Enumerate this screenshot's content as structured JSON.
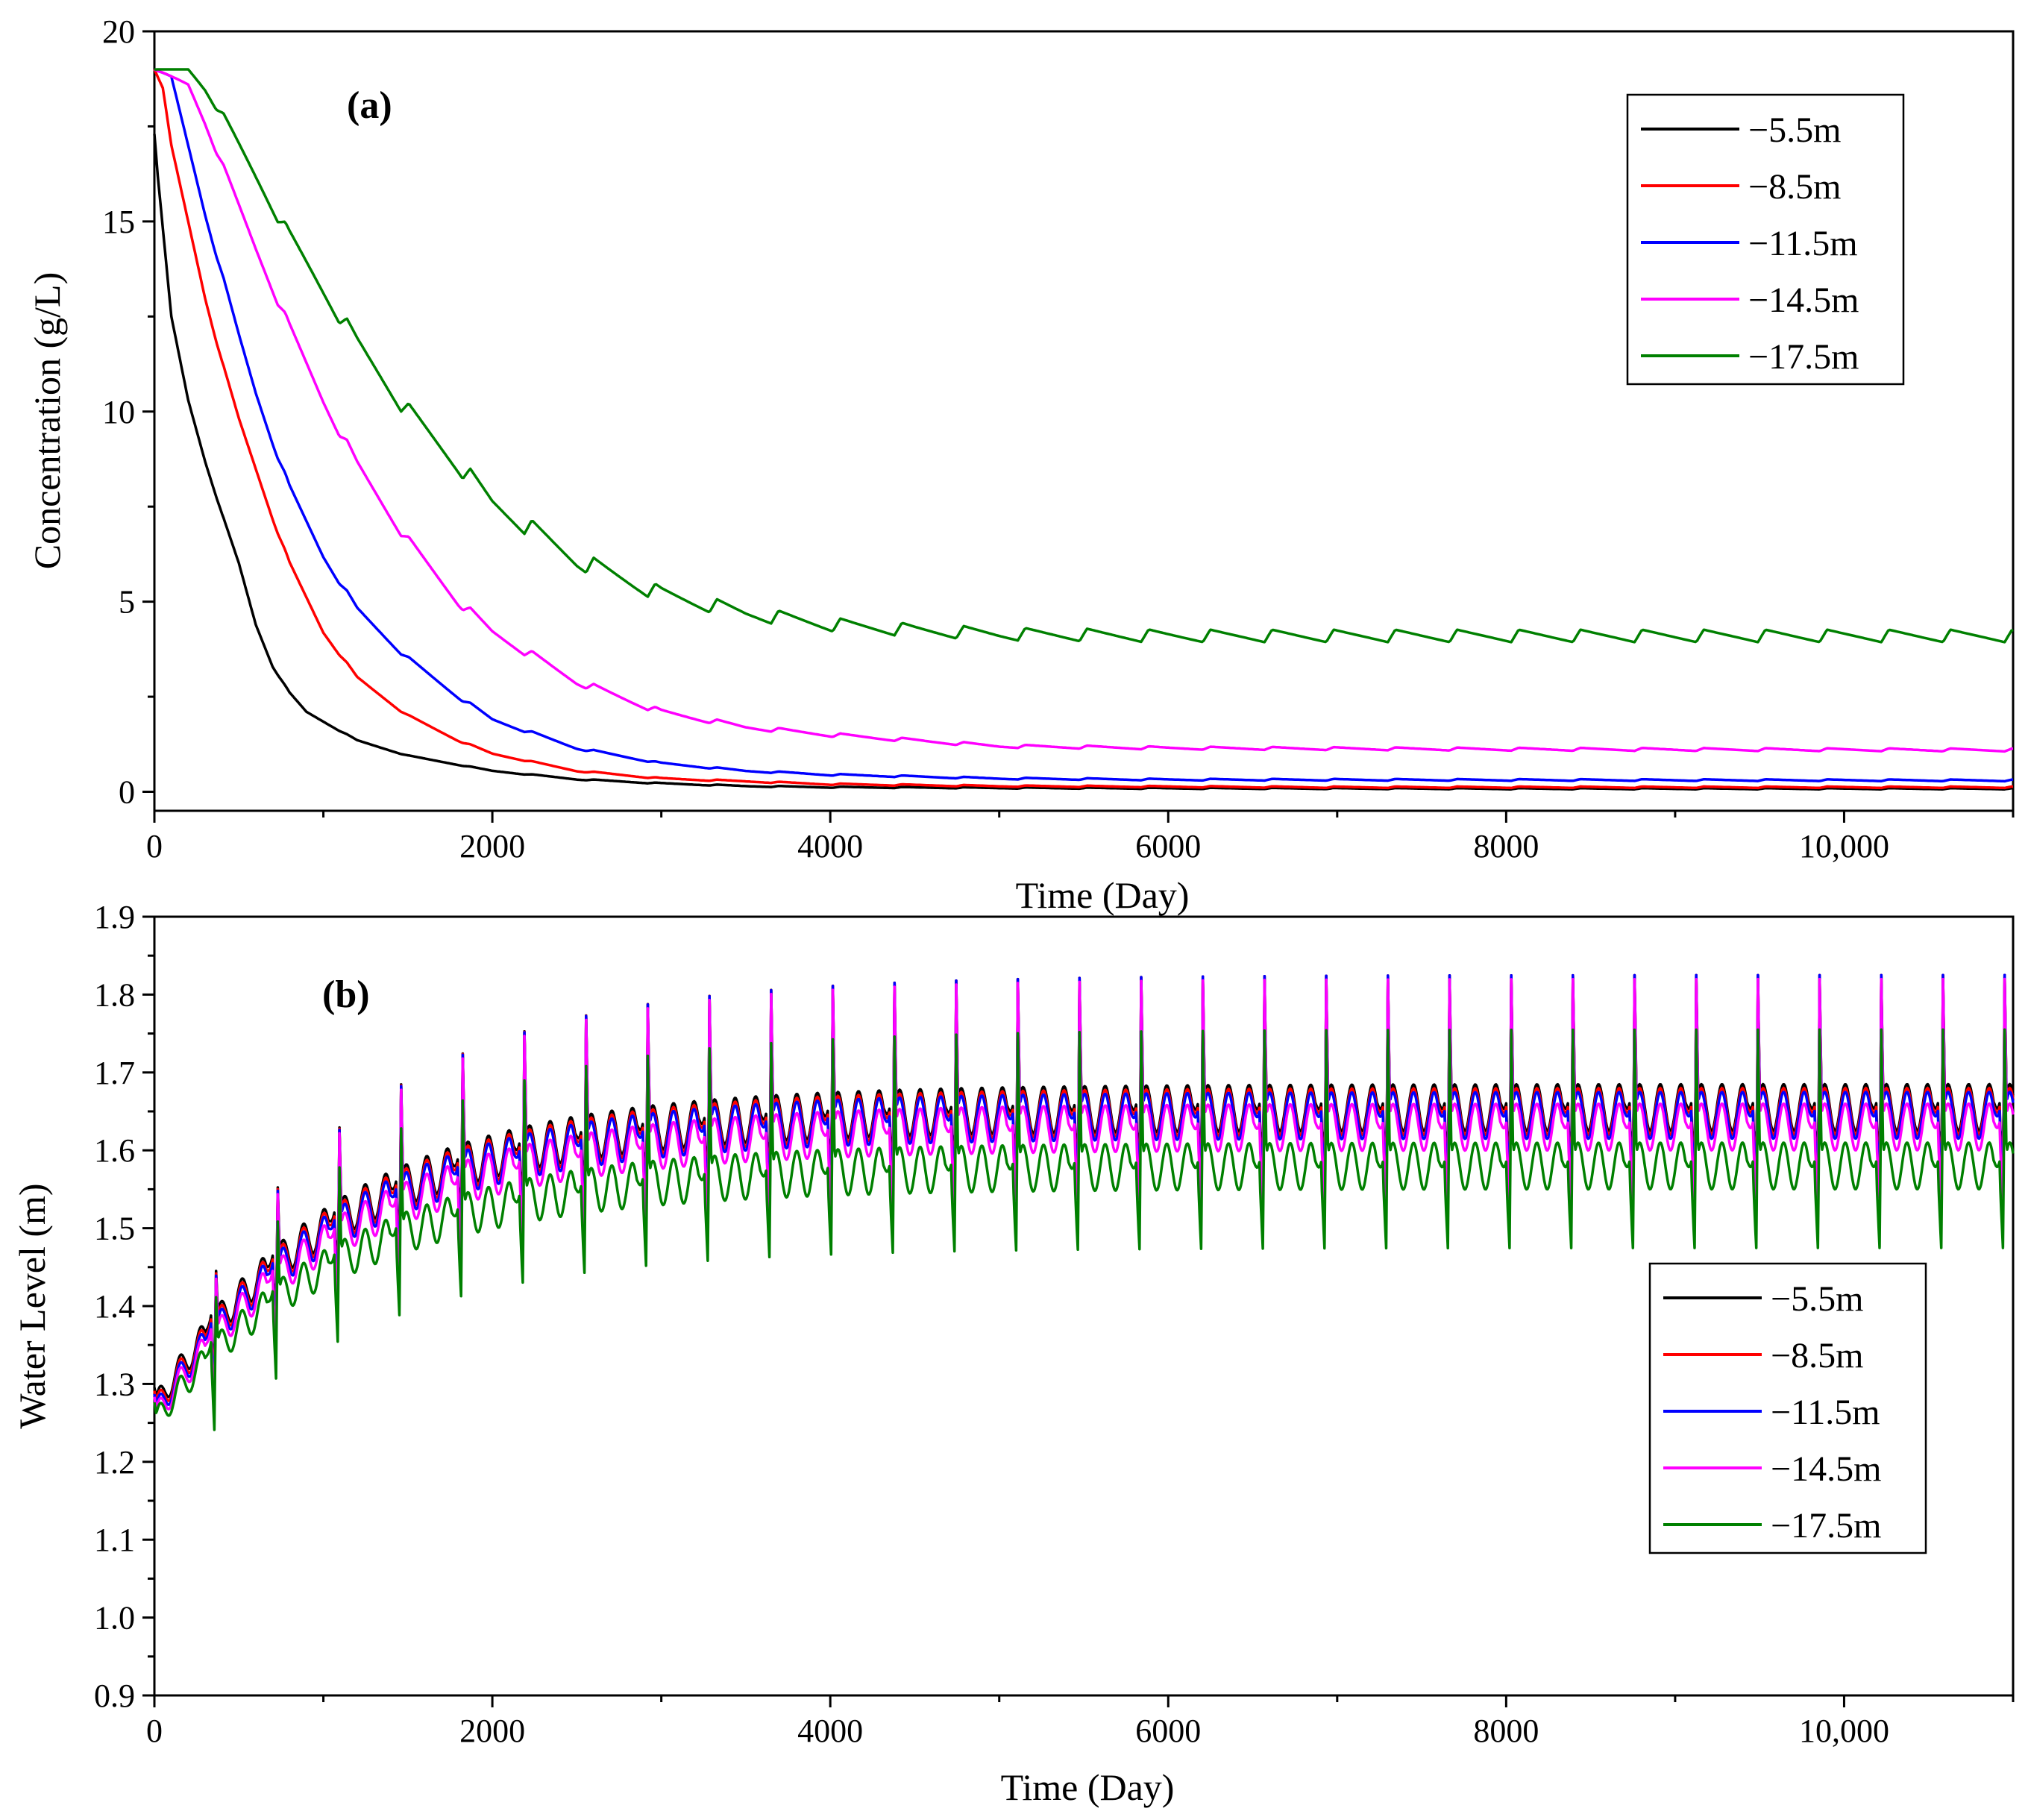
{
  "colors": {
    "series": [
      "#000000",
      "#ff0000",
      "#0000ff",
      "#ff00ff",
      "#008000"
    ]
  },
  "chart_data": [
    {
      "type": "line",
      "panel_label": "(a)",
      "xlabel": "Time (Day)",
      "ylabel": "Concentration (g/L)",
      "xlim": [
        0,
        11000
      ],
      "ylim": [
        -0.5,
        20
      ],
      "xticks": [
        0,
        2000,
        4000,
        6000,
        8000,
        10000
      ],
      "xtick_labels": [
        "0",
        "2000",
        "4000",
        "6000",
        "8000",
        "10,000"
      ],
      "yticks": [
        0,
        5,
        10,
        15,
        20
      ],
      "ytick_labels": [
        "0",
        "5",
        "10",
        "15",
        "20"
      ],
      "legend_position": "top-right",
      "legend": [
        "−5.5m",
        "−8.5m",
        "−11.5m",
        "−14.5m",
        "−17.5m"
      ],
      "period_days": 365,
      "series": [
        {
          "name": "−5.5m",
          "x": [
            0,
            20,
            100,
            200,
            300,
            400,
            500,
            600,
            700,
            800,
            900,
            1000,
            1200,
            1500,
            2000,
            2500,
            3000,
            3500,
            4000,
            5000,
            6000,
            8000,
            11000
          ],
          "y": [
            17.3,
            16.2,
            12.5,
            10.3,
            8.7,
            7.3,
            6.0,
            4.4,
            3.3,
            2.6,
            2.1,
            1.85,
            1.35,
            0.95,
            0.55,
            0.33,
            0.22,
            0.15,
            0.12,
            0.1,
            0.09,
            0.08,
            0.08
          ]
        },
        {
          "name": "−8.5m",
          "x": [
            0,
            50,
            100,
            200,
            300,
            400,
            500,
            600,
            700,
            800,
            1000,
            1200,
            1500,
            1800,
            2000,
            2500,
            3000,
            4000,
            5000,
            7000,
            11000
          ],
          "y": [
            19.0,
            18.5,
            17.0,
            15.0,
            13.0,
            11.3,
            9.8,
            8.5,
            7.2,
            6.0,
            4.2,
            3.0,
            2.0,
            1.35,
            1.0,
            0.55,
            0.35,
            0.2,
            0.15,
            0.12,
            0.12
          ]
        },
        {
          "name": "−11.5m",
          "x": [
            0,
            100,
            200,
            300,
            400,
            500,
            600,
            700,
            800,
            1000,
            1200,
            1500,
            1800,
            2000,
            2500,
            3000,
            3500,
            4000,
            5000,
            6000,
            11000
          ],
          "y": [
            19.0,
            18.8,
            17.0,
            15.2,
            13.6,
            12.0,
            10.5,
            9.2,
            8.0,
            6.2,
            4.8,
            3.5,
            2.5,
            1.9,
            1.15,
            0.75,
            0.55,
            0.45,
            0.35,
            0.32,
            0.3
          ]
        },
        {
          "name": "−14.5m",
          "x": [
            0,
            200,
            300,
            400,
            500,
            600,
            800,
            1000,
            1200,
            1500,
            1800,
            2000,
            2500,
            3000,
            3500,
            4000,
            5000,
            6000,
            8000,
            11000
          ],
          "y": [
            19.0,
            18.6,
            17.6,
            16.5,
            15.4,
            14.3,
            12.2,
            10.3,
            8.6,
            6.6,
            5.0,
            4.2,
            2.9,
            2.1,
            1.7,
            1.5,
            1.2,
            1.15,
            1.12,
            1.1
          ]
        },
        {
          "name": "−17.5m",
          "x": [
            0,
            200,
            300,
            400,
            500,
            600,
            800,
            1000,
            1200,
            1500,
            1800,
            2000,
            2500,
            3000,
            3500,
            4000,
            4500,
            5000,
            6000,
            8000,
            11000
          ],
          "y": [
            19.0,
            19.0,
            18.5,
            17.8,
            17.0,
            16.2,
            14.6,
            13.2,
            11.8,
            10.0,
            8.6,
            7.6,
            6.1,
            5.2,
            4.7,
            4.4,
            4.25,
            4.15,
            4.1,
            4.1,
            4.1
          ]
        }
      ]
    },
    {
      "type": "line",
      "panel_label": "(b)",
      "xlabel": "Time (Day)",
      "ylabel": "Water Level (m)",
      "xlim": [
        0,
        11000
      ],
      "ylim": [
        0.9,
        1.9
      ],
      "xticks": [
        0,
        2000,
        4000,
        6000,
        8000,
        10000
      ],
      "xtick_labels": [
        "0",
        "2000",
        "4000",
        "6000",
        "8000",
        "10,000"
      ],
      "yticks": [
        0.9,
        1.0,
        1.1,
        1.2,
        1.3,
        1.4,
        1.5,
        1.6,
        1.7,
        1.8,
        1.9
      ],
      "ytick_labels": [
        "0.9",
        "1.0",
        "1.1",
        "1.2",
        "1.3",
        "1.4",
        "1.5",
        "1.6",
        "1.7",
        "1.8",
        "1.9"
      ],
      "legend_position": "center-right",
      "legend": [
        "−5.5m",
        "−8.5m",
        "−11.5m",
        "−14.5m",
        "−17.5m"
      ],
      "period_days": 365,
      "peak_day_in_cycle": 365,
      "series": [
        {
          "name": "−5.5m",
          "baseline_start": 1.27,
          "baseline_end": 1.655,
          "peak_end": 1.825
        },
        {
          "name": "−8.5m",
          "baseline_start": 1.265,
          "baseline_end": 1.65,
          "peak_end": 1.825
        },
        {
          "name": "−11.5m",
          "baseline_start": 1.26,
          "baseline_end": 1.645,
          "peak_end": 1.825
        },
        {
          "name": "−14.5m",
          "baseline_start": 1.255,
          "baseline_end": 1.63,
          "peak_end": 1.82
        },
        {
          "name": "−17.5m",
          "baseline_start": 1.25,
          "baseline_end": 1.58,
          "peak_end": 1.755
        }
      ]
    }
  ]
}
